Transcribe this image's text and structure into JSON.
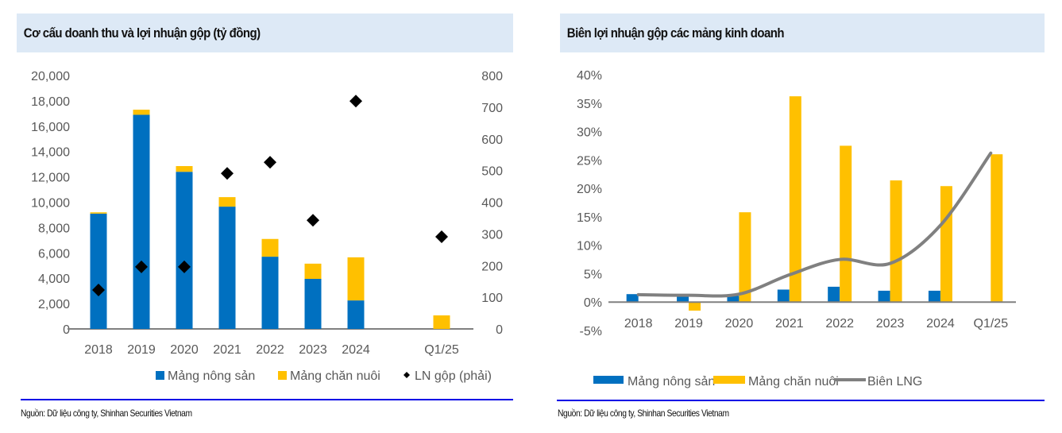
{
  "colors": {
    "blue": "#0070c0",
    "yellow": "#ffc000",
    "diamond": "#000000",
    "line": "#808080",
    "title_bg": "#dde9f6",
    "rule": "#0000e6",
    "axis": "#808080"
  },
  "chart_data": [
    {
      "type": "bar",
      "stacked": true,
      "title": "Cơ cấu doanh thu và lợi nhuận gộp (tỷ đồng)",
      "categories": [
        "2018",
        "2019",
        "2020",
        "2021",
        "2022",
        "2023",
        "2024",
        "",
        "Q1/25"
      ],
      "series": [
        {
          "name": "Mảng nông sản",
          "kind": "bar",
          "axis": "left",
          "color": "#0070c0",
          "values": [
            9100,
            16900,
            12400,
            9650,
            5700,
            3950,
            2250,
            null,
            0
          ]
        },
        {
          "name": "Mảng chăn nuôi",
          "kind": "bar",
          "axis": "left",
          "color": "#ffc000",
          "values": [
            100,
            400,
            450,
            750,
            1400,
            1200,
            3400,
            null,
            1070
          ]
        },
        {
          "name": "LN gộp (phải)",
          "kind": "scatter",
          "marker": "diamond",
          "axis": "right",
          "color": "#000000",
          "values": [
            123,
            196,
            196,
            491,
            526,
            343,
            719,
            null,
            291
          ]
        }
      ],
      "ylim": [
        0,
        20000
      ],
      "yticks": [
        "0",
        "2,000",
        "4,000",
        "6,000",
        "8,000",
        "10,000",
        "12,000",
        "14,000",
        "16,000",
        "18,000",
        "20,000"
      ],
      "ytick_values": [
        0,
        2000,
        4000,
        6000,
        8000,
        10000,
        12000,
        14000,
        16000,
        18000,
        20000
      ],
      "y2lim": [
        0,
        800
      ],
      "y2ticks": [
        "0",
        "100",
        "200",
        "300",
        "400",
        "500",
        "600",
        "700",
        "800"
      ],
      "y2tick_values": [
        0,
        100,
        200,
        300,
        400,
        500,
        600,
        700,
        800
      ],
      "xlabel": "",
      "ylabel": "",
      "grid": false,
      "legend_position": "bottom",
      "legend": [
        "Mảng nông sản",
        "Mảng chăn nuôi",
        "LN gộp (phải)"
      ],
      "source": "Nguồn: Dữ liệu công ty, Shinhan Securities Vietnam"
    },
    {
      "type": "bar",
      "stacked": false,
      "title": "Biên lợi nhuận gộp các mảng kinh doanh",
      "categories": [
        "2018",
        "2019",
        "2020",
        "2021",
        "2022",
        "2023",
        "2024",
        "Q1/25"
      ],
      "series": [
        {
          "name": "Mảng nông sản",
          "kind": "bar",
          "color": "#0070c0",
          "values": [
            1.4,
            1.1,
            1.1,
            2.2,
            2.7,
            2.0,
            2.0,
            null
          ]
        },
        {
          "name": "Mảng chăn nuôi",
          "kind": "bar",
          "color": "#ffc000",
          "values": [
            0.0,
            -1.5,
            15.8,
            36.2,
            27.5,
            21.4,
            20.4,
            26.0
          ]
        },
        {
          "name": "Biên LNG",
          "kind": "line",
          "smooth": true,
          "color": "#808080",
          "values": [
            1.3,
            1.2,
            1.4,
            4.8,
            7.5,
            6.8,
            13.5,
            26.2
          ]
        }
      ],
      "unit": "%",
      "ylim": [
        -5,
        40
      ],
      "yticks": [
        "-5%",
        "0%",
        "5%",
        "10%",
        "15%",
        "20%",
        "25%",
        "30%",
        "35%",
        "40%"
      ],
      "ytick_values": [
        -5,
        0,
        5,
        10,
        15,
        20,
        25,
        30,
        35,
        40
      ],
      "xlabel": "",
      "ylabel": "",
      "grid": false,
      "legend_position": "bottom",
      "legend": [
        "Mảng nông sản",
        "Mảng chăn nuôi",
        "Biên LNG"
      ],
      "source": "Nguồn:  Dữ liệu công ty, Shinhan Securities Vietnam"
    }
  ]
}
